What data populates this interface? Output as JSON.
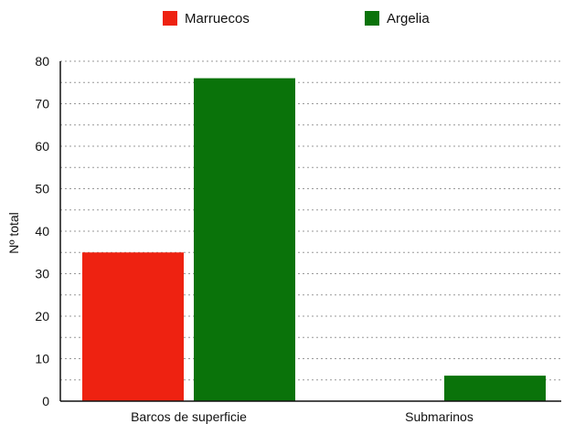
{
  "chart_data": {
    "type": "bar",
    "categories": [
      "Barcos de superficie",
      "Submarinos"
    ],
    "series": [
      {
        "name": "Marruecos",
        "values": [
          35,
          0
        ],
        "color": "#ee2211"
      },
      {
        "name": "Argelia",
        "values": [
          76,
          6
        ],
        "color": "#0a730a"
      }
    ],
    "title": "",
    "xlabel": "",
    "ylabel": "Nº total",
    "ylim": [
      0,
      80
    ],
    "yticks": [
      0,
      10,
      20,
      30,
      40,
      50,
      60,
      70,
      80
    ],
    "grid": "dotted horizontal",
    "legend_position": "top"
  }
}
